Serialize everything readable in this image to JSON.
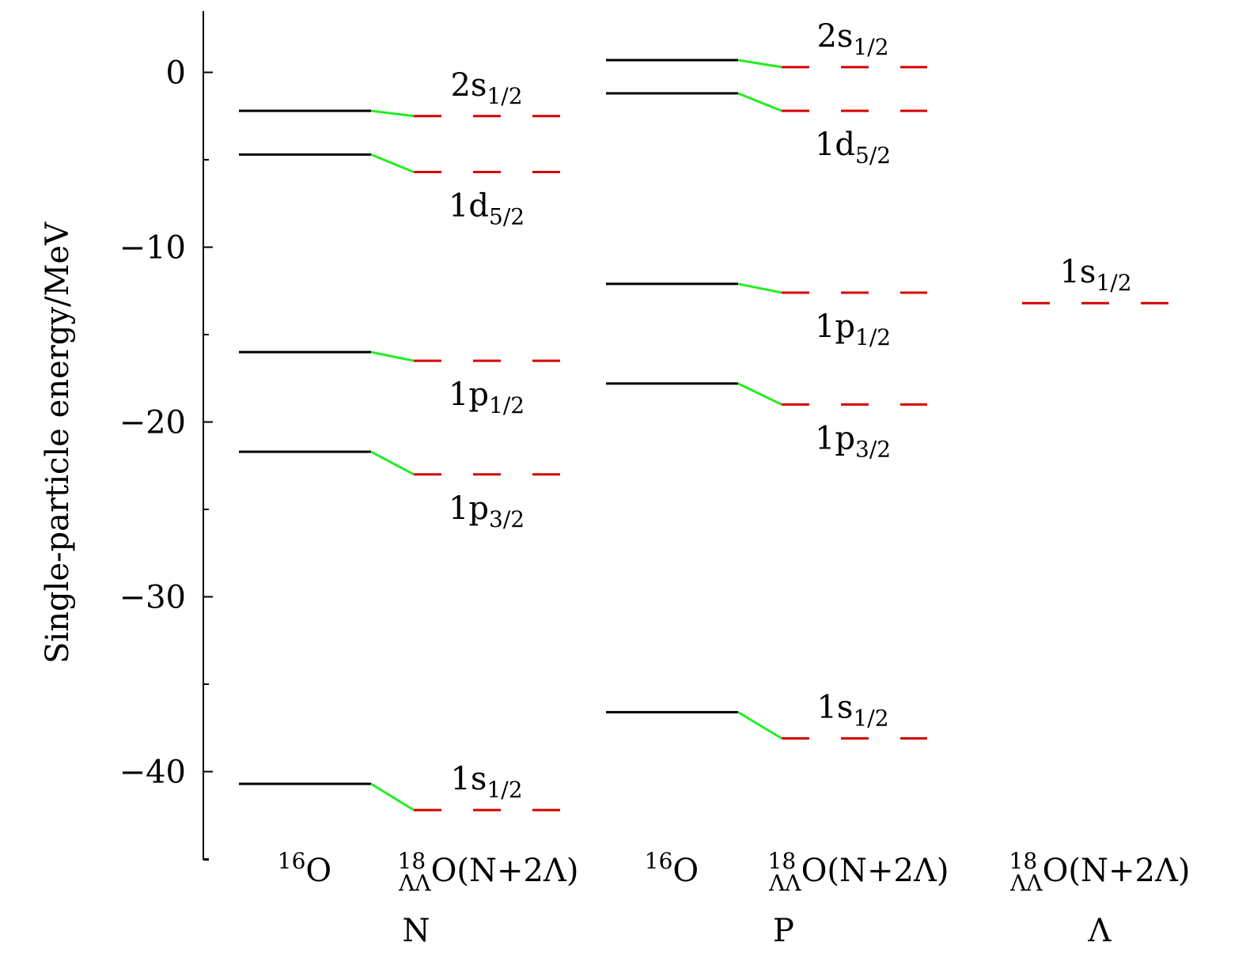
{
  "chart_data": {
    "type": "energy-level",
    "ylabel": "Single-particle energy/MeV",
    "yticks": [
      0,
      -10,
      -20,
      -30,
      -40
    ],
    "ytick_labels": [
      "0",
      "−10",
      "−20",
      "−30",
      "−40"
    ],
    "ylim": [
      -45,
      3.5
    ],
    "colors": {
      "reference_level": "#000000",
      "connector": "#22ee22",
      "shifted_level": "#d40000",
      "axis": "#000000"
    },
    "groups": [
      {
        "name": "N",
        "left_label": "16O",
        "left_label_parts": {
          "sup": "16",
          "base": "O"
        },
        "right_label": "18ΛΛO(N+2Λ)",
        "right_label_parts": {
          "sup": "18",
          "sub": "ΛΛ",
          "base": "O(N+2Λ)"
        },
        "levels": [
          {
            "state": "2s1/2",
            "base": "2s",
            "sub": "1/2",
            "e_16O": -2.2,
            "e_18O": -2.5,
            "label_side": "above"
          },
          {
            "state": "1d5/2",
            "base": "1d",
            "sub": "5/2",
            "e_16O": -4.7,
            "e_18O": -5.7,
            "label_side": "below"
          },
          {
            "state": "1p1/2",
            "base": "1p",
            "sub": "1/2",
            "e_16O": -16.0,
            "e_18O": -16.5,
            "label_side": "below"
          },
          {
            "state": "1p3/2",
            "base": "1p",
            "sub": "3/2",
            "e_16O": -21.7,
            "e_18O": -23.0,
            "label_side": "below"
          },
          {
            "state": "1s1/2",
            "base": "1s",
            "sub": "1/2",
            "e_16O": -40.7,
            "e_18O": -42.2,
            "label_side": "above"
          }
        ]
      },
      {
        "name": "P",
        "left_label": "16O",
        "left_label_parts": {
          "sup": "16",
          "base": "O"
        },
        "right_label": "18ΛΛO(N+2Λ)",
        "right_label_parts": {
          "sup": "18",
          "sub": "ΛΛ",
          "base": "O(N+2Λ)"
        },
        "levels": [
          {
            "state": "2s1/2",
            "base": "2s",
            "sub": "1/2",
            "e_16O": 0.7,
            "e_18O": 0.3,
            "label_side": "above"
          },
          {
            "state": "1d5/2",
            "base": "1d",
            "sub": "5/2",
            "e_16O": -1.2,
            "e_18O": -2.2,
            "label_side": "below"
          },
          {
            "state": "1p1/2",
            "base": "1p",
            "sub": "1/2",
            "e_16O": -12.1,
            "e_18O": -12.6,
            "label_side": "below"
          },
          {
            "state": "1p3/2",
            "base": "1p",
            "sub": "3/2",
            "e_16O": -17.8,
            "e_18O": -19.0,
            "label_side": "below"
          },
          {
            "state": "1s1/2",
            "base": "1s",
            "sub": "1/2",
            "e_16O": -36.6,
            "e_18O": -38.1,
            "label_side": "above"
          }
        ]
      },
      {
        "name": "Λ",
        "right_label": "18ΛΛO(N+2Λ)",
        "right_label_parts": {
          "sup": "18",
          "sub": "ΛΛ",
          "base": "O(N+2Λ)"
        },
        "levels": [
          {
            "state": "1s1/2",
            "base": "1s",
            "sub": "1/2",
            "e_18O": -13.2,
            "label_side": "above"
          }
        ]
      }
    ]
  }
}
